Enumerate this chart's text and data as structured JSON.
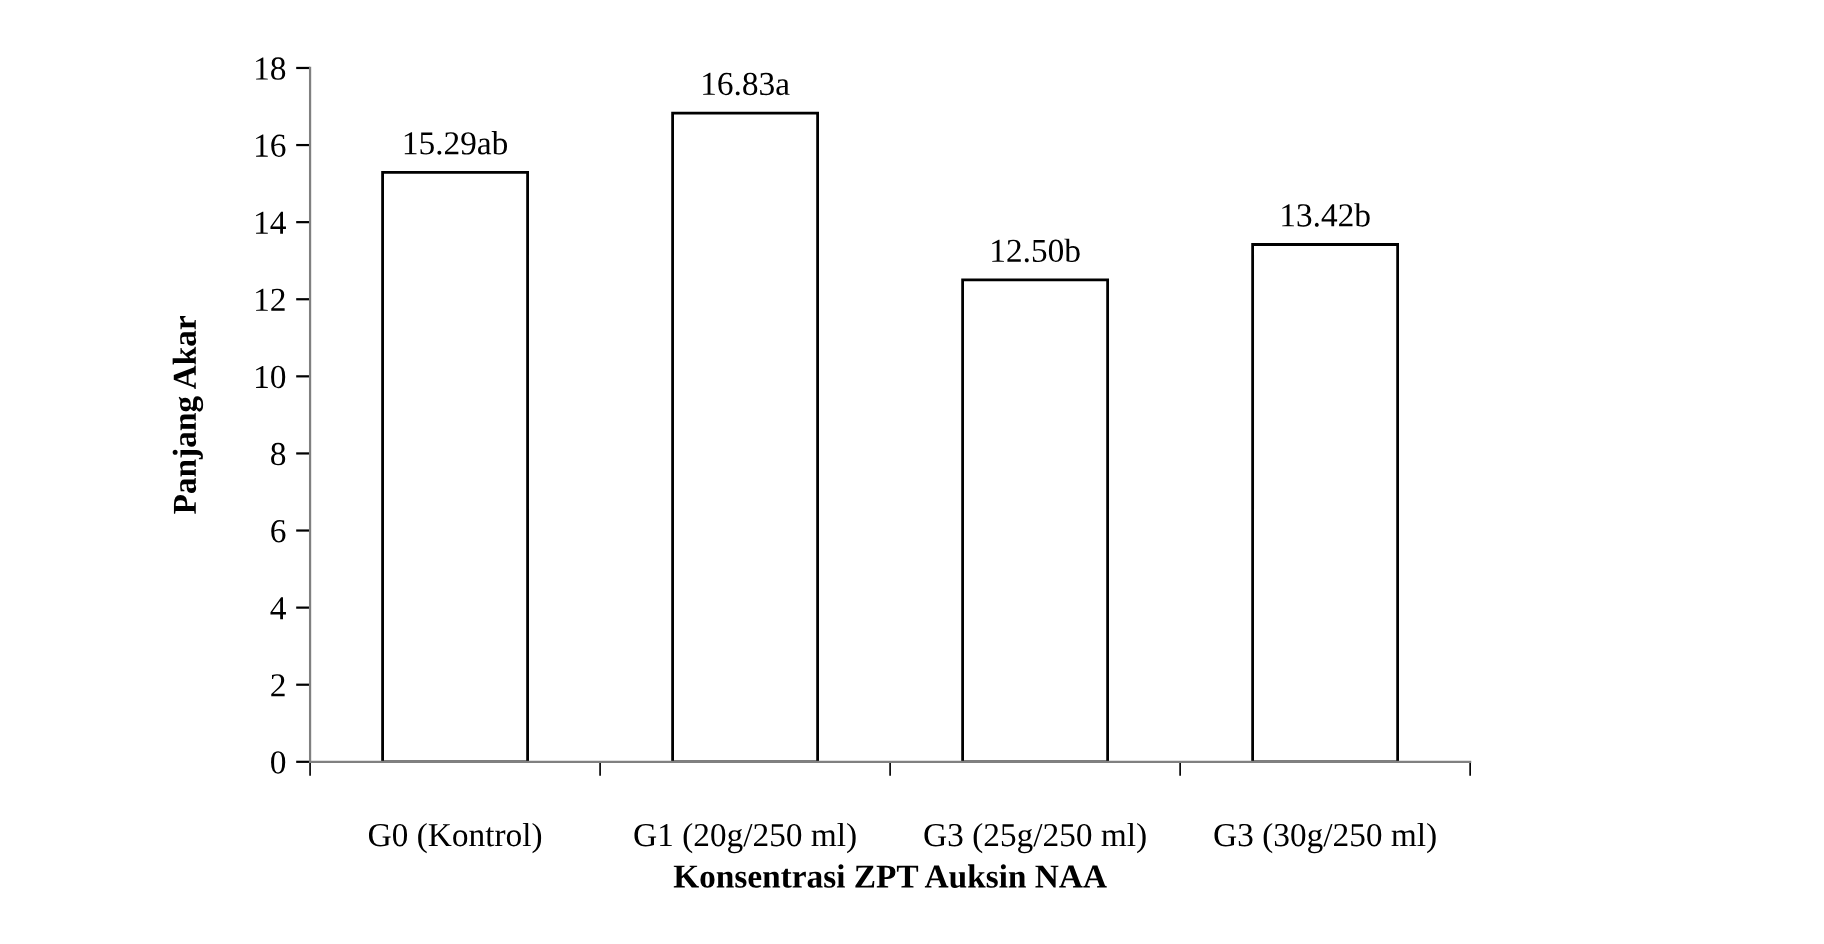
{
  "chart_data": {
    "type": "bar",
    "xlabel": "Konsentrasi ZPT Auksin NAA",
    "ylabel": "Panjang Akar",
    "categories": [
      "G0 (Kontrol)",
      "G1 (20g/250 ml)",
      "G3 (25g/250 ml)",
      "G3 (30g/250 ml)"
    ],
    "values": [
      15.29,
      16.83,
      12.5,
      13.42
    ],
    "value_labels": [
      "15.29ab",
      "16.83a",
      "12.50b",
      "13.42b"
    ],
    "color": "#ffffff",
    "ylim": [
      0,
      18
    ],
    "yticks": [
      0,
      2,
      4,
      6,
      8,
      10,
      12,
      14,
      16,
      18
    ],
    "grid": false,
    "legend": false
  }
}
